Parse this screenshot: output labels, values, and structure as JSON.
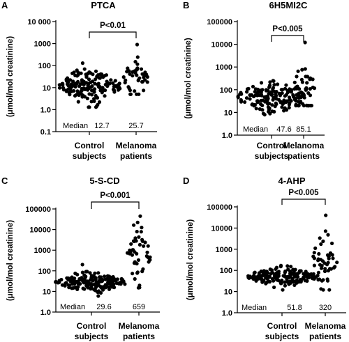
{
  "chart_data": [
    {
      "panel": "A",
      "type": "scatter",
      "title": "PTCA",
      "ylabel": "(μmol/mol creatinine)",
      "yscale": "log",
      "ylim": [
        0.1,
        10000
      ],
      "yticks": [
        "0.1",
        "1.0",
        "10",
        "100",
        "1000",
        "10 000"
      ],
      "categories": [
        "Control\nsubjects",
        "Melanoma\npatients"
      ],
      "category_lines": [
        [
          "Control",
          "subjects"
        ],
        [
          "Melanoma",
          "patients"
        ]
      ],
      "significance": "P<0.01",
      "median_label": "Median",
      "medians": [
        "12.7",
        "25.7"
      ],
      "series": [
        {
          "distribution": {
            "median": 12.7,
            "min": 1.3,
            "max": 130,
            "spread": 0.35,
            "count": 160,
            "width": 46
          }
        },
        {
          "distribution": {
            "median": 25.7,
            "min": 5,
            "max": 900,
            "spread": 0.45,
            "count": 45,
            "width": 18
          }
        }
      ]
    },
    {
      "panel": "B",
      "type": "scatter",
      "title": "6H5MI2C",
      "ylabel": "(μmol/mol creatinine)",
      "yscale": "log",
      "ylim": [
        1,
        100000
      ],
      "yticks": [
        "1.0",
        "10",
        "100",
        "1000",
        "10000",
        "100000"
      ],
      "categories": [
        "Control\nsubjects",
        "Melanoma\npatients"
      ],
      "category_lines": [
        [
          "Control",
          "subjects"
        ],
        [
          "Melanoma",
          "patients"
        ]
      ],
      "significance": "P<0.005",
      "median_label": "Median",
      "medians": [
        "47.6",
        "85.1"
      ],
      "series": [
        {
          "distribution": {
            "median": 47.6,
            "min": 8,
            "max": 250,
            "spread": 0.3,
            "count": 160,
            "width": 50
          }
        },
        {
          "distribution": {
            "median": 85.1,
            "min": 20,
            "max": 12000,
            "spread": 0.55,
            "count": 45,
            "width": 18
          }
        }
      ]
    },
    {
      "panel": "C",
      "type": "scatter",
      "title": "5-S-CD",
      "ylabel": "(μmol/mol creatinine)",
      "yscale": "log",
      "ylim": [
        1,
        100000
      ],
      "yticks": [
        "1.0",
        "10",
        "100",
        "1000",
        "10000",
        "100000"
      ],
      "categories": [
        "Control\nsubjects",
        "Melanoma\npatients"
      ],
      "category_lines": [
        [
          "Control",
          "subjects"
        ],
        [
          "Melanoma",
          "patients"
        ]
      ],
      "significance": "P<0.001",
      "median_label": "Median",
      "medians": [
        "29.6",
        "659"
      ],
      "series": [
        {
          "distribution": {
            "median": 29.6,
            "min": 6,
            "max": 200,
            "spread": 0.22,
            "count": 160,
            "width": 52
          }
        },
        {
          "distribution": {
            "median": 659,
            "min": 15,
            "max": 45000,
            "spread": 0.75,
            "count": 48,
            "width": 18
          }
        }
      ]
    },
    {
      "panel": "D",
      "type": "scatter",
      "title": "4-AHP",
      "ylabel": "(μmol/mol creatinine)",
      "yscale": "log",
      "ylim": [
        1,
        100000
      ],
      "yticks": [
        "1.0",
        "10",
        "100",
        "1000",
        "10000",
        "100000"
      ],
      "categories": [
        "Control\nsubjects",
        "Melanoma\npatients"
      ],
      "category_lines": [
        [
          "Control",
          "subjects"
        ],
        [
          "Melanoma",
          "patients"
        ]
      ],
      "significance": "P<0.005",
      "median_label": "Median",
      "medians": [
        "51.8",
        "320"
      ],
      "series": [
        {
          "distribution": {
            "median": 51.8,
            "min": 12,
            "max": 170,
            "spread": 0.2,
            "count": 160,
            "width": 52
          }
        },
        {
          "distribution": {
            "median": 320,
            "min": 12,
            "max": 40000,
            "spread": 0.7,
            "count": 48,
            "width": 18
          }
        }
      ]
    }
  ]
}
